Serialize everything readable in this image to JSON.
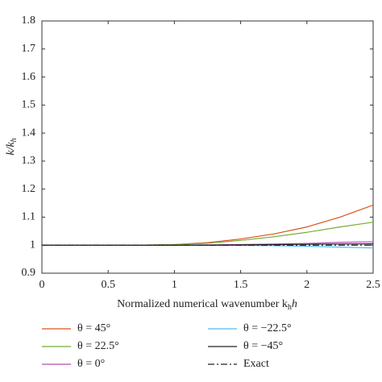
{
  "chart_data": {
    "type": "line",
    "ylabel": {
      "main": "k/k",
      "sub": "h"
    },
    "xlabel": {
      "main": "Normalized numerical wavenumber k",
      "sub": "h",
      "tail": "h"
    },
    "x": [
      0,
      0.25,
      0.5,
      0.75,
      1,
      1.25,
      1.5,
      1.75,
      2,
      2.25,
      2.5
    ],
    "series": [
      {
        "name": "θ = 45°",
        "color": "#d95319",
        "values": [
          1,
          1,
          1,
          1,
          1.002,
          1.009,
          1.022,
          1.04,
          1.065,
          1.1,
          1.143
        ]
      },
      {
        "name": "θ = 22.5°",
        "color": "#77ac30",
        "values": [
          1,
          1,
          1,
          1,
          1.002,
          1.007,
          1.017,
          1.03,
          1.046,
          1.065,
          1.082
        ]
      },
      {
        "name": "θ = 0°",
        "color": "#b24cb4",
        "values": [
          1,
          1,
          1,
          1,
          1,
          1.001,
          1.002,
          1.004,
          1.006,
          1.01,
          1.012
        ]
      },
      {
        "name": "θ = −22.5°",
        "color": "#4dbeee",
        "values": [
          1,
          1,
          1,
          1,
          1,
          1,
          0.999,
          0.998,
          0.996,
          0.993,
          0.99
        ]
      },
      {
        "name": "θ = −45°",
        "color": "#222222",
        "values": [
          1,
          1,
          1,
          1,
          1,
          1,
          1.001,
          1.002,
          1.003,
          1.004,
          1.005
        ]
      },
      {
        "name": "Exact",
        "color": "#222222",
        "dash": "8,3,2,3",
        "values": [
          1,
          1,
          1,
          1,
          1,
          1,
          1,
          1,
          1,
          1,
          1
        ]
      }
    ],
    "xlim": [
      0,
      2.5
    ],
    "xticks": [
      0,
      0.5,
      1,
      1.5,
      2,
      2.5
    ],
    "ylim": [
      0.9,
      1.8
    ],
    "yticks": [
      0.9,
      1,
      1.1,
      1.2,
      1.3,
      1.4,
      1.5,
      1.6,
      1.7,
      1.8
    ],
    "grid": false
  }
}
